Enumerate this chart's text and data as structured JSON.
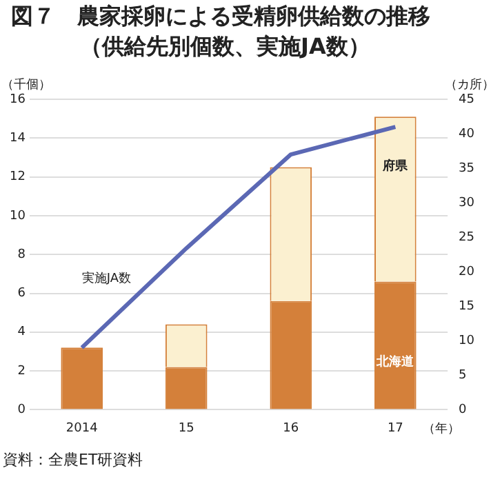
{
  "chart_data": {
    "type": "bar",
    "title": "図７　農家採卵による受精卵供給数の推移",
    "subtitle": "（供給先別個数、実施JA数）",
    "xlabel": "（年）",
    "ylabel": "（千個）",
    "y2label": "（カ所）",
    "annotations": [
      "資料：全農ET研資料"
    ],
    "categories": [
      "2014",
      "15",
      "16",
      "17"
    ],
    "stacked": true,
    "series": [
      {
        "name": "北海道",
        "color": "#d4803a",
        "values": [
          3.2,
          2.2,
          5.6,
          6.6
        ]
      },
      {
        "name": "府県",
        "color": "#fbf0d0",
        "values": [
          0,
          2.2,
          6.9,
          8.5
        ]
      },
      {
        "name": "実施JA数",
        "type": "line",
        "axis": "y2",
        "color": "#5b68b4",
        "values": [
          9,
          23.4,
          37,
          41
        ]
      }
    ],
    "ylim": [
      0,
      16
    ],
    "yticks": [
      0,
      2,
      4,
      6,
      8,
      10,
      12,
      14,
      16
    ],
    "y2lim": [
      0,
      45
    ],
    "y2ticks": [
      0,
      5,
      10,
      15,
      20,
      25,
      30,
      35,
      40,
      45
    ],
    "grid": "y",
    "legend": false,
    "marker": "none",
    "line_style": "solid"
  }
}
